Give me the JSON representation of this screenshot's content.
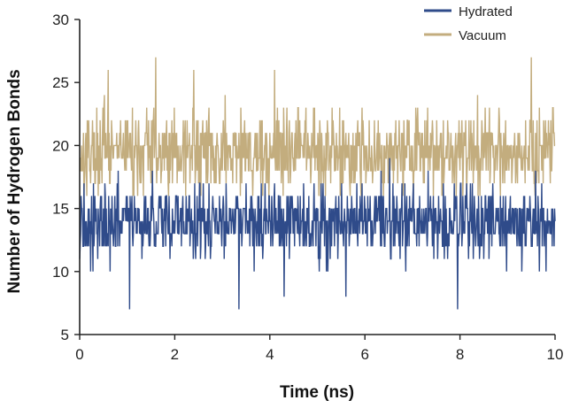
{
  "chart_data": {
    "type": "line",
    "title": "",
    "xlabel": "Time (ns)",
    "ylabel": "Number of Hydrogen Bonds",
    "xlim": [
      0,
      10
    ],
    "ylim": [
      5,
      30
    ],
    "xticks": [
      0,
      2,
      4,
      6,
      8,
      10
    ],
    "yticks": [
      5,
      10,
      15,
      20,
      25,
      30
    ],
    "xtick_labels": [
      "0",
      "2",
      "4",
      "6",
      "8",
      "10"
    ],
    "ytick_labels": [
      "5",
      "10",
      "15",
      "20",
      "25",
      "30"
    ],
    "grid": false,
    "legend_position": "top-right",
    "samples": 1000,
    "series": [
      {
        "name": "Vacuum",
        "color": "#c3ad7e",
        "mean": 19.5,
        "min": 16,
        "max": 27,
        "peaks": [
          [
            1.6,
            27
          ],
          [
            9.5,
            27
          ],
          [
            4.1,
            26
          ],
          [
            0.6,
            26
          ],
          [
            2.4,
            26
          ]
        ]
      },
      {
        "name": "Hydrated",
        "color": "#2f4b8a",
        "mean": 14.0,
        "min": 7,
        "max": 21,
        "troughs": [
          [
            1.05,
            7
          ],
          [
            3.35,
            7
          ],
          [
            7.95,
            7
          ],
          [
            4.3,
            8
          ],
          [
            5.6,
            8
          ]
        ]
      }
    ],
    "legend": [
      "Hydrated",
      "Vacuum"
    ]
  }
}
